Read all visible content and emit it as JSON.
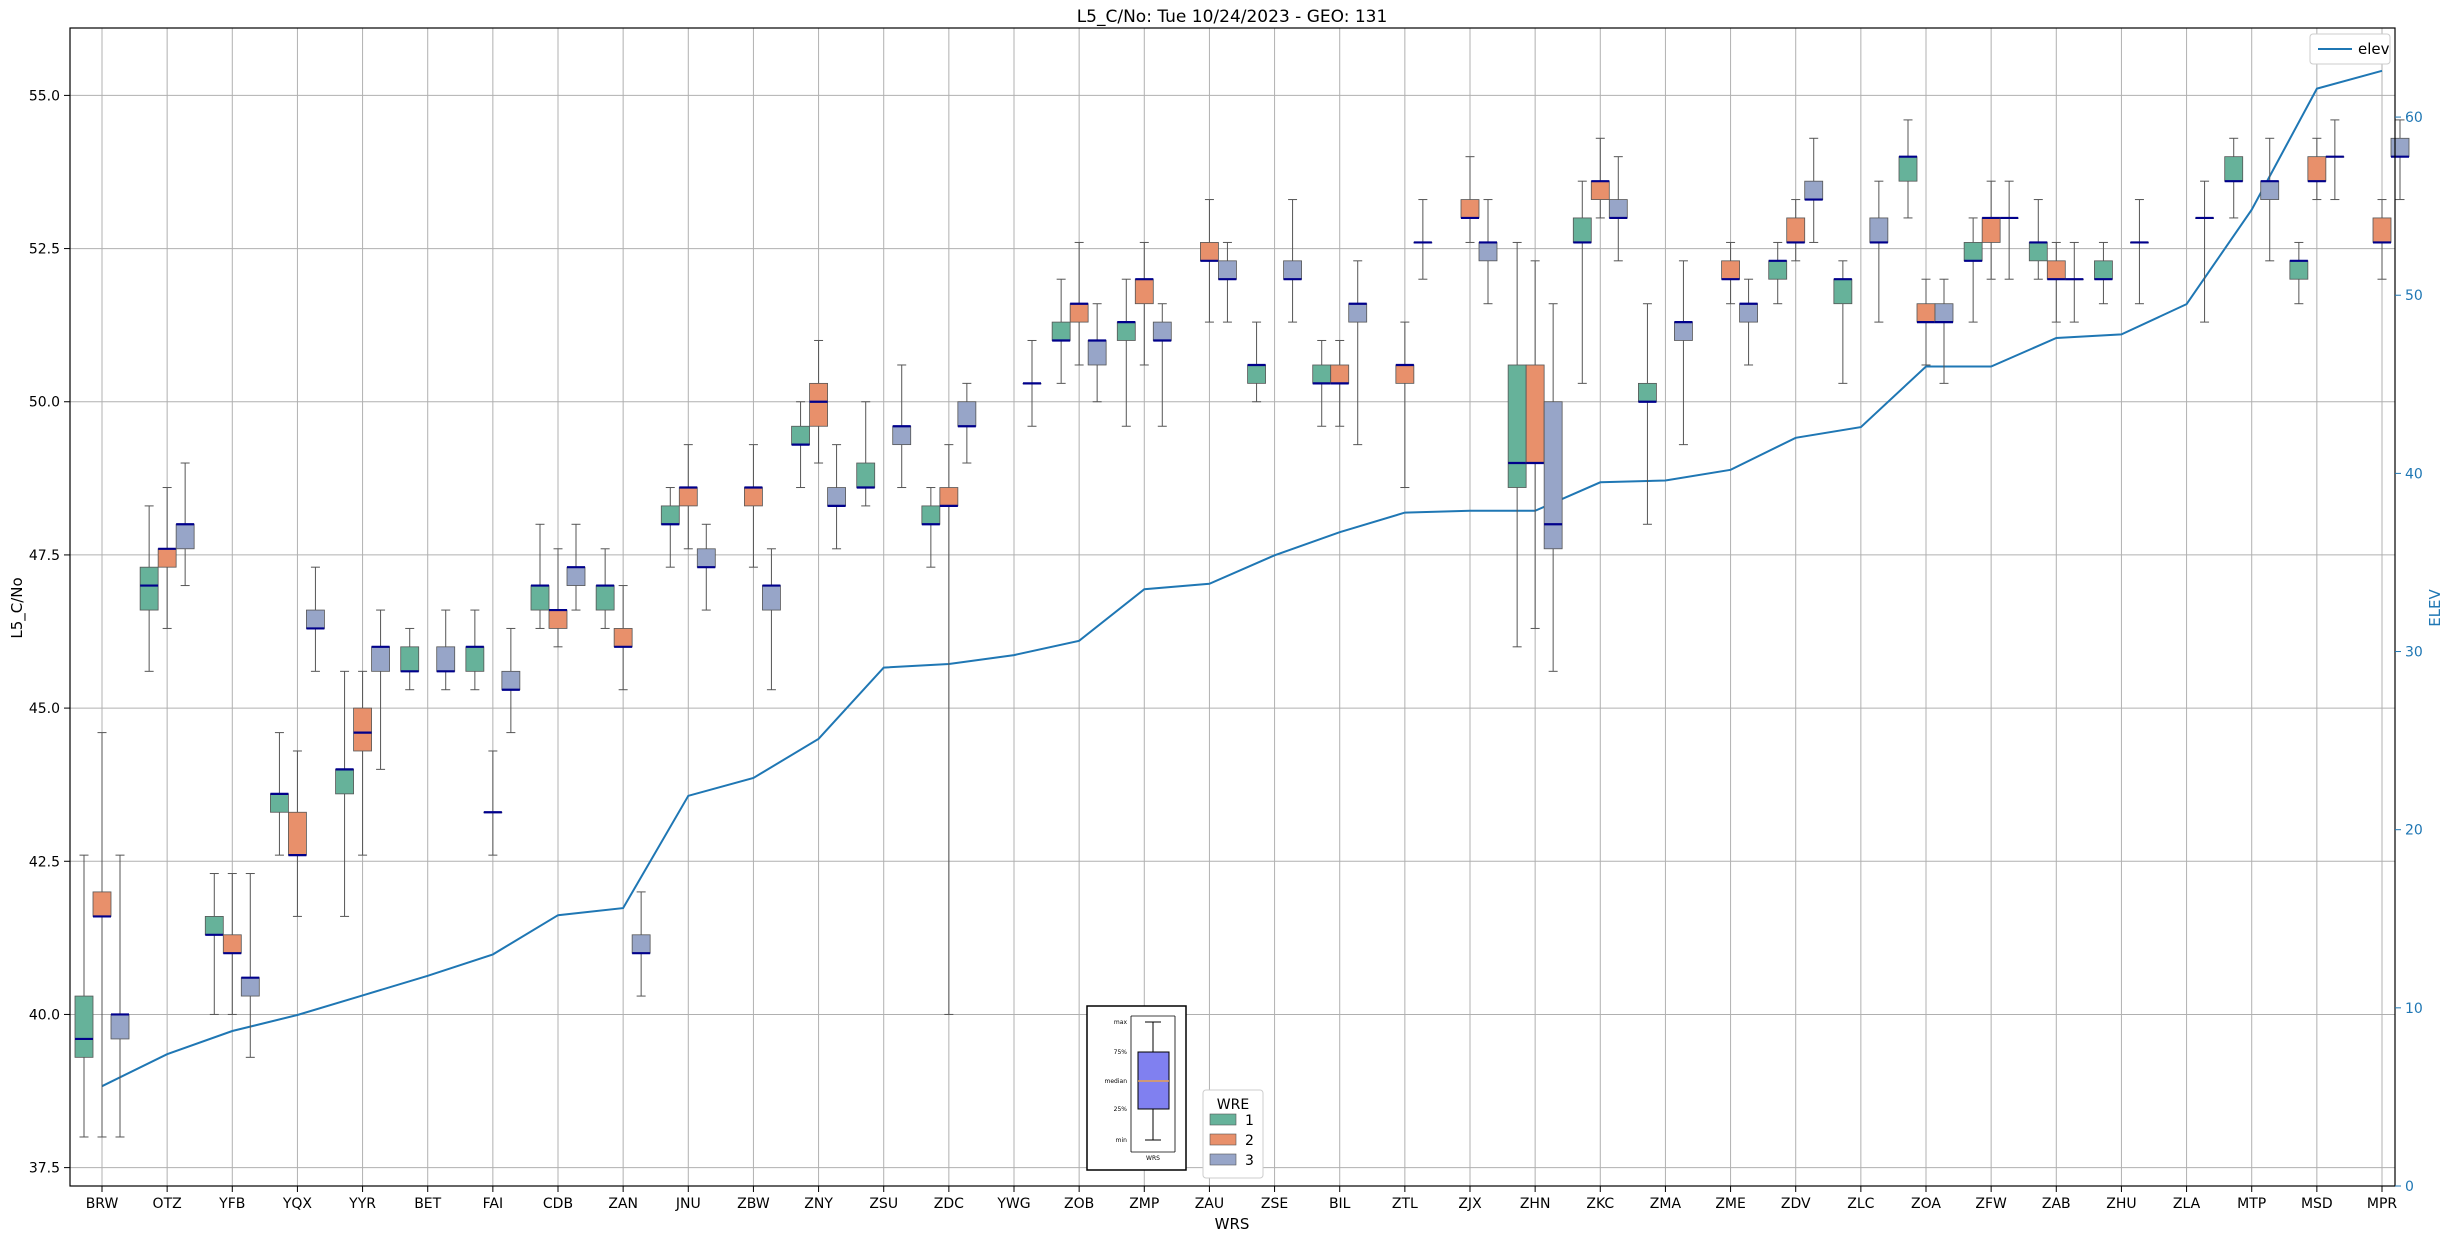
{
  "chart_data": {
    "type": "box",
    "title": "L5_C/No: Tue 10/24/2023 - GEO: 131",
    "xlabel": "WRS",
    "ylabel": "L5_C/No",
    "y2label": "ELEV",
    "ylim": [
      37.2,
      56.1
    ],
    "y2lim": [
      0,
      65
    ],
    "yticks": [
      37.5,
      40.0,
      42.5,
      45.0,
      47.5,
      50.0,
      52.5,
      55.0
    ],
    "ytick_labels": [
      "37.5",
      "40.0",
      "42.5",
      "45.0",
      "47.5",
      "50.0",
      "52.5",
      "55.0"
    ],
    "y2ticks": [
      0,
      10,
      20,
      30,
      40,
      50,
      60
    ],
    "y2tick_labels": [
      "0",
      "10",
      "20",
      "30",
      "40",
      "50",
      "60"
    ],
    "grid": true,
    "categories": [
      "BRW",
      "OTZ",
      "YFB",
      "YQX",
      "YYR",
      "BET",
      "FAI",
      "CDB",
      "ZAN",
      "JNU",
      "ZBW",
      "ZNY",
      "ZSU",
      "ZDC",
      "YWG",
      "ZOB",
      "ZMP",
      "ZAU",
      "ZSE",
      "BIL",
      "ZTL",
      "ZJX",
      "ZHN",
      "ZKC",
      "ZMA",
      "ZME",
      "ZDV",
      "ZLC",
      "ZOA",
      "ZFW",
      "ZAB",
      "ZHU",
      "ZLA",
      "MTP",
      "MSD",
      "MPR"
    ],
    "legend_title": "WRE",
    "legend_placement": "bottom-center",
    "box_series": [
      {
        "name": "1",
        "color": "#66b29a",
        "boxes": [
          [
            38.0,
            39.3,
            39.6,
            40.3,
            42.6
          ],
          [
            45.6,
            46.6,
            47.0,
            47.3,
            48.3
          ],
          [
            40.0,
            41.3,
            41.3,
            41.6,
            42.3
          ],
          [
            42.6,
            43.3,
            43.6,
            43.6,
            44.6
          ],
          [
            41.6,
            43.6,
            44.0,
            44.0,
            45.6
          ],
          [
            45.3,
            45.6,
            45.6,
            46.0,
            46.3
          ],
          [
            45.3,
            45.6,
            46.0,
            46.0,
            46.6
          ],
          [
            46.3,
            46.6,
            47.0,
            47.0,
            48.0
          ],
          [
            46.3,
            46.6,
            47.0,
            47.0,
            47.6
          ],
          [
            47.3,
            48.0,
            48.0,
            48.3,
            48.6
          ],
          null,
          [
            48.6,
            49.3,
            49.3,
            49.6,
            50.0
          ],
          [
            48.3,
            48.6,
            48.6,
            49.0,
            50.0
          ],
          [
            47.3,
            48.0,
            48.0,
            48.3,
            48.6
          ],
          null,
          [
            50.3,
            51.0,
            51.0,
            51.3,
            52.0
          ],
          [
            49.6,
            51.0,
            51.3,
            51.3,
            52.0
          ],
          null,
          [
            50.0,
            50.3,
            50.6,
            50.6,
            51.3
          ],
          [
            49.6,
            50.3,
            50.3,
            50.6,
            51.0
          ],
          null,
          null,
          [
            46.0,
            48.6,
            49.0,
            50.6,
            52.6
          ],
          [
            50.3,
            52.6,
            52.6,
            53.0,
            53.6
          ],
          [
            48.0,
            50.0,
            50.0,
            50.3,
            51.6
          ],
          null,
          [
            51.6,
            52.0,
            52.3,
            52.3,
            52.6
          ],
          [
            50.3,
            51.6,
            52.0,
            52.0,
            52.3
          ],
          [
            53.0,
            53.6,
            54.0,
            54.0,
            54.6
          ],
          [
            51.3,
            52.3,
            52.3,
            52.6,
            53.0
          ],
          [
            52.0,
            52.3,
            52.6,
            52.6,
            53.3
          ],
          [
            51.6,
            52.0,
            52.0,
            52.3,
            52.6
          ],
          null,
          [
            53.0,
            53.6,
            53.6,
            54.0,
            54.3
          ],
          [
            51.6,
            52.0,
            52.3,
            52.3,
            52.6
          ],
          null
        ]
      },
      {
        "name": "2",
        "color": "#e8906b",
        "boxes": [
          [
            38.0,
            41.6,
            41.6,
            42.0,
            44.6
          ],
          [
            46.3,
            47.3,
            47.6,
            47.6,
            48.6
          ],
          [
            40.0,
            41.0,
            41.0,
            41.3,
            42.3
          ],
          [
            41.6,
            42.6,
            42.6,
            43.3,
            44.3
          ],
          [
            42.6,
            44.3,
            44.6,
            45.0,
            45.6
          ],
          null,
          [
            42.6,
            43.3,
            43.3,
            43.3,
            44.3
          ],
          [
            46.0,
            46.3,
            46.6,
            46.6,
            47.6
          ],
          [
            45.3,
            46.0,
            46.0,
            46.3,
            47.0
          ],
          [
            47.6,
            48.3,
            48.6,
            48.6,
            49.3
          ],
          [
            47.3,
            48.3,
            48.6,
            48.6,
            49.3
          ],
          [
            49.0,
            49.6,
            50.0,
            50.3,
            51.0
          ],
          null,
          [
            40.0,
            48.3,
            48.3,
            48.6,
            49.3
          ],
          null,
          [
            50.6,
            51.3,
            51.6,
            51.6,
            52.6
          ],
          [
            50.6,
            51.6,
            52.0,
            52.0,
            52.6
          ],
          [
            51.3,
            52.3,
            52.3,
            52.6,
            53.3
          ],
          null,
          [
            49.6,
            50.3,
            50.3,
            50.6,
            51.0
          ],
          [
            48.6,
            50.3,
            50.6,
            50.6,
            51.3
          ],
          [
            52.6,
            53.0,
            53.0,
            53.3,
            54.0
          ],
          [
            46.3,
            49.0,
            49.0,
            50.6,
            52.3
          ],
          [
            53.0,
            53.3,
            53.6,
            53.6,
            54.3
          ],
          null,
          [
            51.6,
            52.0,
            52.0,
            52.3,
            52.6
          ],
          [
            52.3,
            52.6,
            52.6,
            53.0,
            53.3
          ],
          null,
          [
            50.6,
            51.3,
            51.3,
            51.6,
            52.0
          ],
          [
            52.0,
            52.6,
            53.0,
            53.0,
            53.6
          ],
          [
            51.3,
            52.0,
            52.0,
            52.3,
            52.6
          ],
          null,
          null,
          null,
          [
            53.3,
            53.6,
            53.6,
            54.0,
            54.3
          ],
          [
            52.0,
            52.6,
            52.6,
            53.0,
            53.3
          ]
        ]
      },
      {
        "name": "3",
        "color": "#97a5c8",
        "boxes": [
          [
            38.0,
            39.6,
            40.0,
            40.0,
            42.6
          ],
          [
            47.0,
            47.6,
            48.0,
            48.0,
            49.0
          ],
          [
            39.3,
            40.3,
            40.6,
            40.6,
            42.3
          ],
          [
            45.6,
            46.3,
            46.3,
            46.6,
            47.3
          ],
          [
            44.0,
            45.6,
            46.0,
            46.0,
            46.6
          ],
          [
            45.3,
            45.6,
            45.6,
            46.0,
            46.6
          ],
          [
            44.6,
            45.3,
            45.3,
            45.6,
            46.3
          ],
          [
            46.6,
            47.0,
            47.3,
            47.3,
            48.0
          ],
          [
            40.3,
            41.0,
            41.0,
            41.3,
            42.0
          ],
          [
            46.6,
            47.3,
            47.3,
            47.6,
            48.0
          ],
          [
            45.3,
            46.6,
            47.0,
            47.0,
            47.6
          ],
          [
            47.6,
            48.3,
            48.3,
            48.6,
            49.3
          ],
          [
            48.6,
            49.3,
            49.6,
            49.6,
            50.6
          ],
          [
            49.0,
            49.6,
            49.6,
            50.0,
            50.3
          ],
          [
            49.6,
            50.3,
            50.3,
            50.3,
            51.0
          ],
          [
            50.0,
            50.6,
            51.0,
            51.0,
            51.6
          ],
          [
            49.6,
            51.0,
            51.0,
            51.3,
            51.6
          ],
          [
            51.3,
            52.0,
            52.0,
            52.3,
            52.6
          ],
          [
            51.3,
            52.0,
            52.0,
            52.3,
            53.3
          ],
          [
            49.3,
            51.3,
            51.6,
            51.6,
            52.3
          ],
          [
            52.0,
            52.6,
            52.6,
            52.6,
            53.3
          ],
          [
            51.6,
            52.3,
            52.6,
            52.6,
            53.3
          ],
          [
            45.6,
            47.6,
            48.0,
            50.0,
            51.6
          ],
          [
            52.3,
            53.0,
            53.0,
            53.3,
            54.0
          ],
          [
            49.3,
            51.0,
            51.3,
            51.3,
            52.3
          ],
          [
            50.6,
            51.3,
            51.6,
            51.6,
            52.0
          ],
          [
            52.6,
            53.3,
            53.3,
            53.6,
            54.3
          ],
          [
            51.3,
            52.6,
            52.6,
            53.0,
            53.6
          ],
          [
            50.3,
            51.3,
            51.3,
            51.6,
            52.0
          ],
          [
            52.0,
            53.0,
            53.0,
            53.0,
            53.6
          ],
          [
            51.3,
            52.0,
            52.0,
            52.0,
            52.6
          ],
          [
            51.6,
            52.6,
            52.6,
            52.6,
            53.3
          ],
          [
            51.3,
            53.0,
            53.0,
            53.0,
            53.6
          ],
          [
            52.3,
            53.3,
            53.6,
            53.6,
            54.3
          ],
          [
            53.3,
            54.0,
            54.0,
            54.0,
            54.6
          ],
          [
            53.3,
            54.0,
            54.0,
            54.3,
            54.6
          ]
        ]
      }
    ],
    "line_series": {
      "name": "elev",
      "color": "#1f77b4",
      "axis": "right",
      "values": [
        5.6,
        7.4,
        8.7,
        9.6,
        10.7,
        11.8,
        13.0,
        15.2,
        15.6,
        21.9,
        22.9,
        25.1,
        29.1,
        29.3,
        29.8,
        30.6,
        33.5,
        33.8,
        35.4,
        36.7,
        37.8,
        37.9,
        37.9,
        39.5,
        39.6,
        40.2,
        42.0,
        42.6,
        46.0,
        46.0,
        47.6,
        47.8,
        49.5,
        54.8,
        61.6,
        62.6
      ]
    },
    "reference_box": {
      "labels": [
        "max",
        "75%",
        "median",
        "25%",
        "min"
      ],
      "xtick": "WRS",
      "fill_color": "#8080f0",
      "median_color": "#e8a050"
    }
  }
}
